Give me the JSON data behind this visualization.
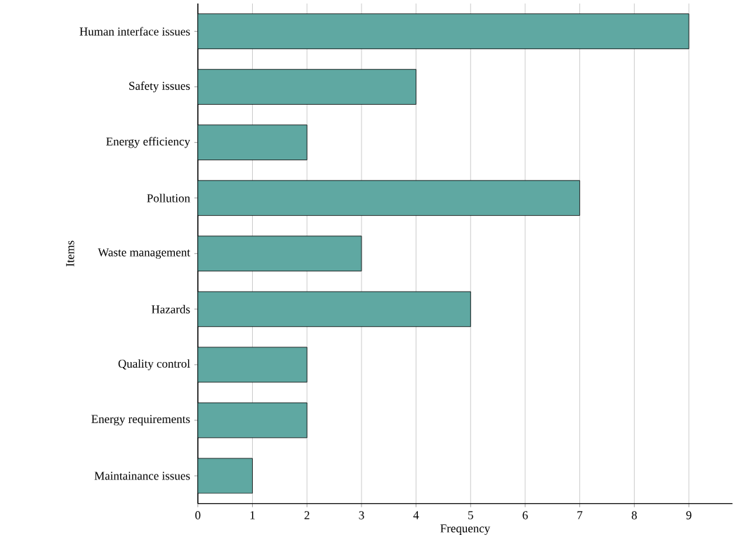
{
  "chart_data": {
    "type": "bar",
    "orientation": "horizontal",
    "xlabel": "Frequency",
    "ylabel": "Items",
    "categories": [
      "Human interface issues",
      "Safety issues",
      "Energy efficiency",
      "Pollution",
      "Waste management",
      "Hazards",
      "Quality control",
      "Energy requirements",
      "Maintainance issues"
    ],
    "values": [
      9,
      4,
      2,
      7,
      3,
      5,
      2,
      2,
      1
    ],
    "color": "#5fa8a2",
    "xlim": [
      0,
      9.8
    ],
    "xticks": [
      0,
      1,
      2,
      3,
      4,
      5,
      6,
      7,
      8,
      9
    ],
    "grid": "x"
  }
}
